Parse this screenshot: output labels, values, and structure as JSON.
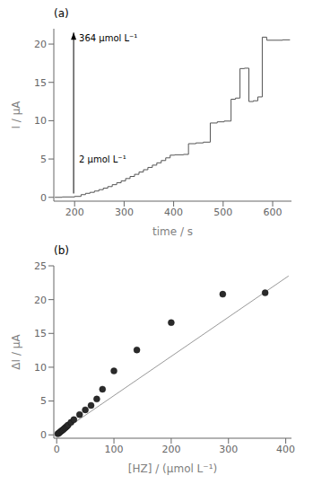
{
  "chart_data": [
    {
      "type": "line",
      "title": "(a)",
      "xlabel": "time / s",
      "ylabel": "I / μA",
      "x": [
        160,
        175,
        175,
        200,
        200,
        213,
        213,
        222,
        222,
        231,
        231,
        240,
        240,
        249,
        249,
        258,
        258,
        267,
        267,
        276,
        276,
        285,
        285,
        294,
        294,
        303,
        303,
        312,
        312,
        321,
        321,
        330,
        330,
        339,
        339,
        348,
        348,
        357,
        357,
        366,
        366,
        375,
        375,
        384,
        384,
        393,
        393,
        402,
        402,
        420,
        420,
        430,
        430,
        445,
        445,
        460,
        460,
        474,
        474,
        488,
        488,
        502,
        502,
        516,
        516,
        525,
        525,
        534,
        534,
        543,
        543,
        552,
        552,
        561,
        561,
        570,
        570,
        579,
        579,
        588,
        588,
        620,
        620,
        635
      ],
      "values": [
        0.0,
        0.0,
        0.05,
        0.05,
        0.12,
        0.12,
        0.35,
        0.35,
        0.52,
        0.52,
        0.65,
        0.65,
        0.82,
        0.82,
        1.0,
        1.0,
        1.2,
        1.2,
        1.4,
        1.4,
        1.65,
        1.65,
        1.9,
        1.9,
        2.15,
        2.15,
        2.45,
        2.45,
        2.72,
        2.72,
        3.0,
        3.0,
        3.3,
        3.3,
        3.6,
        3.6,
        3.9,
        3.9,
        4.2,
        4.2,
        4.5,
        4.5,
        4.8,
        4.8,
        5.15,
        5.15,
        5.5,
        5.5,
        5.55,
        5.55,
        5.6,
        5.6,
        7.0,
        7.0,
        7.1,
        7.1,
        7.2,
        7.2,
        9.7,
        9.7,
        9.85,
        9.85,
        9.95,
        9.95,
        12.8,
        12.8,
        12.95,
        12.95,
        16.8,
        16.8,
        16.85,
        16.85,
        12.5,
        12.5,
        12.6,
        12.6,
        13.1,
        13.1,
        20.9,
        20.9,
        20.5,
        20.5,
        20.55,
        20.55
      ],
      "color": "#555555",
      "xlim": [
        158,
        638
      ],
      "ylim": [
        -0.5,
        22
      ],
      "xticks": [
        200,
        300,
        400,
        500,
        600
      ],
      "yticks": [
        0,
        5,
        10,
        15,
        20
      ],
      "grid": false,
      "annotations": [
        {
          "type": "arrow",
          "x": 198,
          "y_start": 0.5,
          "y_end": 21.5,
          "text_end": "364 μmol L⁻¹",
          "text_start": "2 μmol L⁻¹"
        }
      ]
    },
    {
      "type": "scatter",
      "title": "(b)",
      "xlabel": "[HZ] / (μmol L⁻¹)",
      "ylabel": "ΔI / μA",
      "series": [
        {
          "type": "line",
          "color": "#999999",
          "x": [
            0,
            405
          ],
          "values": [
            0.0,
            23.5
          ]
        },
        {
          "type": "scatter",
          "color": "#2a2a2a",
          "x": [
            2,
            4,
            6,
            8,
            10,
            12,
            14,
            16,
            18,
            20,
            25,
            30,
            40,
            50,
            60,
            70,
            80,
            100,
            140,
            200,
            290,
            364
          ],
          "values": [
            0.15,
            0.28,
            0.42,
            0.56,
            0.68,
            0.82,
            0.98,
            1.12,
            1.28,
            1.45,
            1.85,
            2.25,
            3.0,
            3.7,
            4.35,
            5.3,
            6.75,
            9.45,
            12.55,
            16.6,
            20.8,
            21.0
          ]
        }
      ],
      "xlim": [
        -5,
        410
      ],
      "ylim": [
        -0.5,
        25
      ],
      "xticks": [
        0,
        100,
        200,
        300,
        400
      ],
      "yticks": [
        0,
        5,
        10,
        15,
        20,
        25
      ],
      "grid": false
    }
  ]
}
